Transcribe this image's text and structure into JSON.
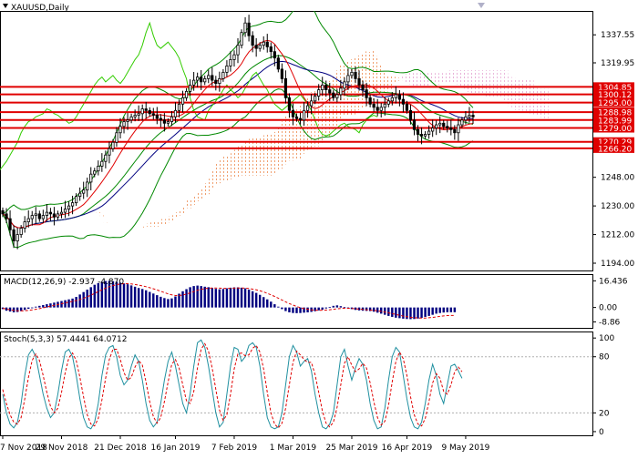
{
  "colors": {
    "background": "#ffffff",
    "frame": "#000000",
    "up_candle": "#ffffff",
    "down_candle": "#000000",
    "level_line": "#e00000",
    "level_tag": "#e00000",
    "bollinger": "#008800",
    "ma_fast": "#e00000",
    "ma_slow": "#000080",
    "chikou": "#33cc00",
    "cloud_a": "#f0a070",
    "cloud_b": "#e8b0d8",
    "macd_hist": "#000080",
    "macd_signal": "#e00000",
    "stoch_main": "#2090a0",
    "stoch_signal": "#e00000"
  },
  "chart_data": [
    {
      "type": "candlestick",
      "title": "XAUUSD,Daily",
      "ylim": [
        1190,
        1352
      ],
      "y_ticks": [
        "1337.55",
        "1319.95",
        "1302.35",
        "1283.75",
        "1266.15",
        "1248.00",
        "1230.00",
        "1212.00",
        "1194.00"
      ],
      "levels": [
        "1304.85",
        "1300.12",
        "1295.00",
        "1288.98",
        "1283.99",
        "1279.00",
        "1270.29",
        "1266.20"
      ],
      "x_ticks": [
        "7 Nov 2018",
        "29 Nov 2018",
        "21 Dec 2018",
        "16 Jan 2019",
        "7 Feb 2019",
        "1 Mar 2019",
        "25 Mar 2019",
        "16 Apr 2019",
        "9 May 2019"
      ],
      "closes": [
        1225,
        1222,
        1215,
        1208,
        1212,
        1216,
        1220,
        1222,
        1224,
        1225,
        1222,
        1224,
        1226,
        1225,
        1223,
        1225,
        1226,
        1228,
        1230,
        1232,
        1236,
        1238,
        1240,
        1245,
        1250,
        1252,
        1255,
        1258,
        1262,
        1266,
        1270,
        1276,
        1280,
        1283,
        1284,
        1286,
        1287,
        1288,
        1291,
        1290,
        1288,
        1287,
        1285,
        1284,
        1282,
        1283,
        1286,
        1290,
        1294,
        1298,
        1302,
        1306,
        1309,
        1311,
        1308,
        1310,
        1312,
        1309,
        1307,
        1310,
        1314,
        1318,
        1322,
        1325,
        1331,
        1339,
        1345,
        1337,
        1331,
        1329,
        1331,
        1333,
        1330,
        1327,
        1323,
        1316,
        1310,
        1298,
        1290,
        1286,
        1285,
        1284,
        1290,
        1293,
        1296,
        1299,
        1303,
        1306,
        1303,
        1301,
        1298,
        1300,
        1304,
        1308,
        1312,
        1314,
        1310,
        1306,
        1303,
        1298,
        1294,
        1292,
        1290,
        1292,
        1294,
        1296,
        1298,
        1300,
        1297,
        1294,
        1290,
        1284,
        1278,
        1275,
        1274,
        1275,
        1277,
        1279,
        1281,
        1282,
        1280,
        1279,
        1278,
        1276,
        1281,
        1284,
        1286,
        1287,
        1286
      ]
    },
    {
      "type": "bar",
      "title": "MACD(12,26,9) -2.937 -4.870",
      "ylim": [
        -12,
        20
      ],
      "y_ticks": [
        "16.436",
        "0.00",
        "-8.86"
      ],
      "values": [
        -1,
        -2,
        -2.5,
        -3,
        -2.8,
        -2.2,
        -1.5,
        -0.8,
        0,
        0.5,
        1,
        1.5,
        2,
        2.5,
        3,
        3.5,
        4,
        4.5,
        5,
        5.5,
        6.5,
        8,
        9.5,
        11,
        12.5,
        14,
        15,
        15.8,
        16.3,
        16.4,
        16.2,
        15.8,
        15.3,
        14.8,
        14.3,
        13.6,
        12.8,
        12,
        11.4,
        10.6,
        9.6,
        8.6,
        7.6,
        6.6,
        5.8,
        5.2,
        5.6,
        6.8,
        8.5,
        10,
        11.3,
        12.5,
        13.2,
        13.5,
        13.2,
        12.8,
        12.5,
        12,
        11.5,
        11.2,
        11.4,
        11.8,
        12.2,
        12.4,
        12.4,
        12.2,
        11.8,
        11,
        10,
        9,
        7.8,
        6.4,
        5,
        3.6,
        2,
        0.5,
        -1,
        -2.2,
        -3,
        -3.4,
        -3.5,
        -3.4,
        -3.2,
        -3,
        -2.7,
        -2.3,
        -1.8,
        -1.3,
        -0.6,
        0.2,
        1,
        1.3,
        0.8,
        0.2,
        -0.5,
        -1,
        -1.5,
        -1.8,
        -2,
        -2.1,
        -2.2,
        -2.6,
        -3.2,
        -3.8,
        -4.5,
        -5.2,
        -5.8,
        -6.3,
        -6.6,
        -6.9,
        -7.1,
        -7.2,
        -7.1,
        -6.8,
        -6.4,
        -5.8,
        -5.2,
        -4.5,
        -3.8,
        -3.4,
        -3.1,
        -2.9,
        -2.9,
        -2.9
      ],
      "signal": [
        -0.5,
        -1,
        -1.4,
        -1.8,
        -2,
        -2.1,
        -2,
        -1.8,
        -1.5,
        -1.1,
        -0.7,
        -0.2,
        0.3,
        0.8,
        1.3,
        1.8,
        2.3,
        2.8,
        3.3,
        3.8,
        4.3,
        4.9,
        5.7,
        6.6,
        7.6,
        8.7,
        9.8,
        10.9,
        11.9,
        12.8,
        13.5,
        14.1,
        14.5,
        14.7,
        14.7,
        14.5,
        14.2,
        13.8,
        13.3,
        12.8,
        12.2,
        11.5,
        10.8,
        10,
        9.2,
        8.4,
        7.8,
        7.4,
        7.4,
        7.7,
        8.3,
        9,
        9.8,
        10.6,
        11.2,
        11.6,
        11.9,
        12,
        12,
        11.9,
        11.8,
        11.8,
        11.8,
        11.9,
        12,
        12,
        11.9,
        11.7,
        11.3,
        10.9,
        10.3,
        9.6,
        8.7,
        7.8,
        6.8,
        5.7,
        4.6,
        3.5,
        2.4,
        1.5,
        0.6,
        -0.1,
        -0.7,
        -1.1,
        -1.5,
        -1.7,
        -1.8,
        -1.7,
        -1.6,
        -1.4,
        -1.1,
        -0.8,
        -0.6,
        -0.5,
        -0.5,
        -0.6,
        -0.8,
        -1,
        -1.2,
        -1.4,
        -1.6,
        -1.8,
        -2.1,
        -2.4,
        -2.8,
        -3.3,
        -3.8,
        -4.3,
        -4.8,
        -5.3,
        -5.7,
        -6.1,
        -6.3,
        -6.5,
        -6.5,
        -6.5,
        -6.3,
        -6.1,
        -5.8,
        -5.5,
        -5.2,
        -5,
        -4.9,
        -4.9
      ]
    },
    {
      "type": "line",
      "title": "Stoch(5,3,3) 57.4441 64.0712",
      "ylim": [
        -3,
        106
      ],
      "y_ticks": [
        "100",
        "80",
        "20",
        "0"
      ],
      "levels": [
        80,
        20
      ],
      "series": [
        {
          "values": [
            40,
            20,
            8,
            4,
            10,
            30,
            60,
            82,
            88,
            80,
            60,
            40,
            25,
            15,
            20,
            40,
            65,
            85,
            88,
            80,
            60,
            35,
            15,
            5,
            3,
            10,
            30,
            60,
            82,
            90,
            92,
            80,
            60,
            50,
            55,
            70,
            82,
            75,
            55,
            30,
            12,
            5,
            10,
            30,
            55,
            75,
            85,
            70,
            50,
            30,
            20,
            40,
            70,
            95,
            98,
            90,
            70,
            45,
            20,
            5,
            10,
            40,
            70,
            90,
            88,
            75,
            80,
            92,
            95,
            90,
            70,
            40,
            15,
            5,
            3,
            5,
            20,
            50,
            80,
            92,
            85,
            70,
            75,
            78,
            65,
            40,
            20,
            5,
            3,
            8,
            20,
            50,
            80,
            88,
            70,
            55,
            68,
            78,
            72,
            55,
            30,
            12,
            3,
            5,
            25,
            55,
            80,
            90,
            85,
            60,
            35,
            15,
            5,
            3,
            10,
            30,
            55,
            72,
            60,
            40,
            30,
            50,
            70,
            72,
            65,
            57
          ]
        },
        {
          "values": [
            45,
            30,
            18,
            10,
            8,
            15,
            35,
            58,
            76,
            83,
            76,
            60,
            42,
            27,
            20,
            25,
            42,
            63,
            79,
            84,
            76,
            58,
            37,
            18,
            8,
            6,
            14,
            34,
            57,
            77,
            88,
            88,
            77,
            63,
            55,
            58,
            69,
            76,
            71,
            53,
            32,
            16,
            9,
            15,
            32,
            53,
            72,
            77,
            68,
            50,
            33,
            30,
            43,
            68,
            88,
            94,
            86,
            68,
            45,
            23,
            12,
            18,
            40,
            67,
            83,
            84,
            81,
            82,
            89,
            92,
            85,
            67,
            42,
            20,
            8,
            4,
            9,
            25,
            50,
            74,
            86,
            82,
            77,
            74,
            74,
            61,
            42,
            22,
            9,
            5,
            10,
            26,
            50,
            73,
            80,
            71,
            64,
            67,
            73,
            68,
            52,
            32,
            15,
            7,
            11,
            28,
            53,
            75,
            85,
            78,
            60,
            37,
            18,
            8,
            6,
            14,
            32,
            52,
            62,
            57,
            43,
            40,
            50,
            64,
            69,
            64
          ]
        }
      ]
    }
  ]
}
